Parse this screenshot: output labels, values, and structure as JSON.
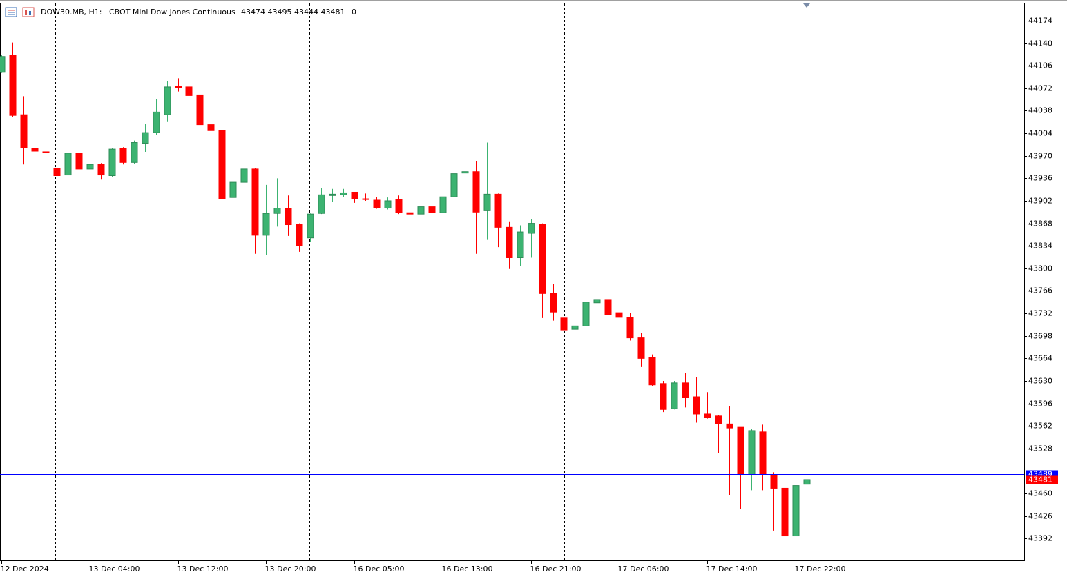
{
  "chart_data": {
    "type": "candlestick",
    "symbol": "DOW30.MB, H1:",
    "title": "CBOT Mini Dow Jones Continuous",
    "ohlc_text": "43474 43495 43444 43481",
    "volume_text": "0",
    "categories": [
      "12 Dec 2024",
      null,
      null,
      null,
      null,
      null,
      null,
      null,
      "13 Dec 04:00",
      null,
      null,
      null,
      null,
      null,
      null,
      null,
      "13 Dec 12:00",
      null,
      null,
      null,
      null,
      null,
      null,
      null,
      "13 Dec 20:00",
      null,
      null,
      null,
      null,
      null,
      null,
      null,
      "16 Dec 05:00",
      null,
      null,
      null,
      null,
      null,
      null,
      null,
      "16 Dec 13:00",
      null,
      null,
      null,
      null,
      null,
      null,
      null,
      "16 Dec 21:00",
      null,
      null,
      null,
      null,
      null,
      null,
      null,
      "17 Dec 06:00",
      null,
      null,
      null,
      null,
      null,
      null,
      null,
      "17 Dec 14:00",
      null,
      null,
      null,
      null,
      null,
      null,
      null,
      "17 Dec 22:00",
      null
    ],
    "open": [
      44096,
      44122,
      44032,
      43981,
      43976,
      43951,
      43941,
      43974,
      43950,
      43957,
      43940,
      43981,
      43960,
      43989,
      44005,
      44032,
      44075,
      44074,
      44062,
      44017,
      44008,
      43907,
      43930,
      43950,
      43850,
      43883,
      43891,
      43866,
      43846,
      43883,
      43910,
      43911,
      43915,
      43905,
      43903,
      43891,
      43904,
      43884,
      43882,
      43893,
      43884,
      43908,
      43944,
      43946,
      43887,
      43912,
      43862,
      43816,
      43853,
      43867,
      43762,
      43725,
      43708,
      43713,
      43748,
      43753,
      43733,
      43726,
      43695,
      43665,
      43626,
      43588,
      43627,
      43606,
      43580,
      43577,
      43565,
      43560,
      43488,
      43553,
      43488,
      43468,
      43396,
      43474
    ],
    "high": [
      44122,
      44141,
      44060,
      44035,
      44007,
      43955,
      43981,
      43976,
      43959,
      43959,
      43982,
      43983,
      43993,
      44018,
      44056,
      44083,
      44087,
      44089,
      44065,
      44030,
      44086,
      43963,
      43999,
      43951,
      43926,
      43936,
      43910,
      43868,
      43883,
      43921,
      43920,
      43920,
      43915,
      43913,
      43908,
      43907,
      43910,
      43919,
      43896,
      43916,
      43926,
      43951,
      43949,
      43962,
      43990,
      43913,
      43871,
      43865,
      43874,
      43868,
      43776,
      43731,
      43720,
      43751,
      43770,
      43755,
      43754,
      43733,
      43702,
      43670,
      43630,
      43630,
      43642,
      43636,
      43613,
      43578,
      43592,
      43560,
      43557,
      43564,
      43492,
      43478,
      43523,
      43495
    ],
    "low": [
      44095,
      44028,
      43957,
      43957,
      43939,
      43917,
      43927,
      43943,
      43916,
      43934,
      43938,
      43957,
      43958,
      43976,
      44001,
      44021,
      44067,
      44051,
      44015,
      44007,
      43903,
      43861,
      43907,
      43822,
      43820,
      43863,
      43849,
      43825,
      43840,
      43882,
      43900,
      43908,
      43899,
      43902,
      43890,
      43889,
      43882,
      43881,
      43856,
      43884,
      43882,
      43906,
      43913,
      43822,
      43843,
      43832,
      43799,
      43803,
      43816,
      43725,
      43721,
      43686,
      43694,
      43704,
      43745,
      43728,
      43724,
      43691,
      43651,
      43622,
      43583,
      43587,
      43590,
      43567,
      43573,
      43521,
      43457,
      43437,
      43465,
      43465,
      43404,
      43375,
      43365,
      43444
    ],
    "close": [
      44120,
      44031,
      43982,
      43977,
      43975,
      43940,
      43974,
      43950,
      43957,
      43941,
      43980,
      43960,
      43990,
      44005,
      44036,
      44074,
      44073,
      44061,
      44017,
      44008,
      43905,
      43930,
      43950,
      43850,
      43883,
      43891,
      43866,
      43834,
      43882,
      43911,
      43912,
      43914,
      43905,
      43904,
      43892,
      43902,
      43884,
      43882,
      43893,
      43884,
      43908,
      43943,
      43946,
      43885,
      43912,
      43862,
      43816,
      43855,
      43868,
      43762,
      43734,
      43707,
      43713,
      43749,
      43753,
      43730,
      43726,
      43695,
      43664,
      43624,
      43587,
      43627,
      43605,
      43580,
      43575,
      43565,
      43559,
      43488,
      43555,
      43488,
      43468,
      43396,
      43472,
      43481
    ],
    "up_color": "#3cb371",
    "down_color": "#ff0000",
    "ylim": [
      43358,
      44200
    ],
    "yticks": [
      44174,
      44140,
      44106,
      44072,
      44038,
      44004,
      43970,
      43936,
      43902,
      43868,
      43834,
      43800,
      43766,
      43732,
      43698,
      43664,
      43630,
      43596,
      43562,
      43528,
      43460,
      43426,
      43392
    ],
    "ask": {
      "value": 43489,
      "color": "#0000ff"
    },
    "bid": {
      "value": 43481,
      "color": "#ff0000"
    }
  }
}
